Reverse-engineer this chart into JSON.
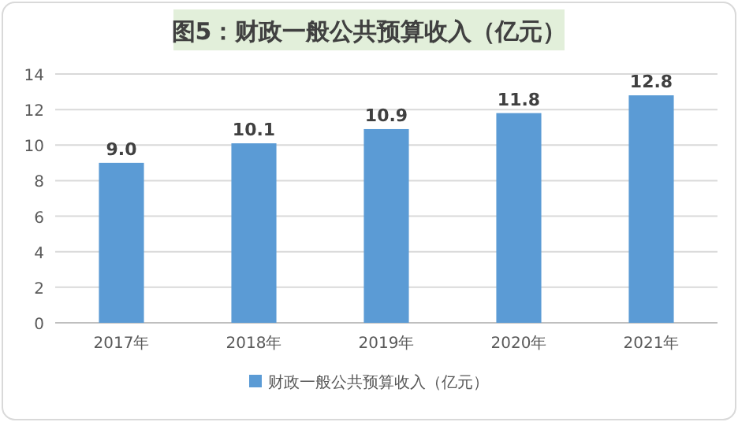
{
  "chart_data": {
    "type": "bar",
    "title": "图5：财政一般公共预算收入（亿元）",
    "categories": [
      "2017年",
      "2018年",
      "2019年",
      "2020年",
      "2021年"
    ],
    "series": [
      {
        "name": "财政一般公共预算收入（亿元）",
        "color": "#5b9bd5",
        "values": [
          9.0,
          10.1,
          10.9,
          11.8,
          12.8
        ],
        "value_labels": [
          "9.0",
          "10.1",
          "10.9",
          "11.8",
          "12.8"
        ]
      }
    ],
    "ylim": [
      0,
      14
    ],
    "yticks": [
      0,
      2,
      4,
      6,
      8,
      10,
      12,
      14
    ],
    "grid": "y",
    "legend": "bottom"
  }
}
